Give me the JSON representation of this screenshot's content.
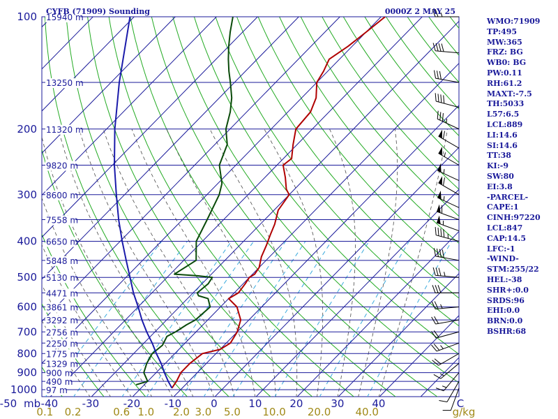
{
  "header": {
    "station": "CYFB (71909) Sounding",
    "time": "0000Z  2 MAY 25"
  },
  "stats": [
    "WMO:71909",
    "TP:495",
    "MW:365",
    "FRZ: BG",
    "WB0: BG",
    "PW:0.11",
    "RH:61.2",
    "MAXT:-7.5",
    "TH:5033",
    "L57:6.5",
    "LCL:889",
    "LI:14.6",
    "SI:14.6",
    "TT:38",
    "KI:-9",
    "SW:80",
    "EI:3.8",
    "-PARCEL-",
    "CAPE:1",
    "CINH:97220",
    "LCL:847",
    "CAP:14.5",
    "LFC:-1",
    "-WIND-",
    "STM:255/22",
    "HEL:-38",
    "SHR+:0.0",
    "SRDS:96",
    "EHI:0.0",
    "BRN:0.0",
    "BSHR:68"
  ],
  "colors": {
    "isobar": "#1a1a9a",
    "isotherm": "#1a1a9a",
    "dry_adiabat": "#22aa22",
    "moist_adiabat": "#4a4a4a",
    "mixing_ratio": "#3aaadd",
    "temperature": "#b00000",
    "dewpoint": "#0a4a0a",
    "parcel": "#1a1aaa",
    "wind_barb": "#000000",
    "background": "#ffffff"
  },
  "chart_data": {
    "type": "skew-t",
    "pressure_unit": "mb",
    "temperature_unit": "C",
    "mixing_ratio_unit": "g/kg",
    "plim": [
      1000,
      100
    ],
    "pressure_ticks": [
      "100",
      "200",
      "300",
      "400",
      "500",
      "600",
      "700",
      "800",
      "900",
      "1000"
    ],
    "temperature_ticks": [
      "-50",
      "-40",
      "-30",
      "-20",
      "-10",
      "0",
      "10",
      "20",
      "30",
      "40"
    ],
    "mixing_ratio_ticks": [
      "0.1",
      "0.2",
      "0.6",
      "1.0",
      "2.0",
      "3.0",
      "5.0",
      "10.0",
      "20.0",
      "40.0"
    ],
    "height_labels": [
      {
        "p": 100,
        "label": "15940 m"
      },
      {
        "p": 150,
        "label": "13250 m"
      },
      {
        "p": 200,
        "label": "11320 m"
      },
      {
        "p": 250,
        "label": "9820 m"
      },
      {
        "p": 300,
        "label": "8600 m"
      },
      {
        "p": 350,
        "label": "7558 m"
      },
      {
        "p": 400,
        "label": "6650 m"
      },
      {
        "p": 450,
        "label": "5848 m"
      },
      {
        "p": 500,
        "label": "5130 m"
      },
      {
        "p": 550,
        "label": "4471 m"
      },
      {
        "p": 600,
        "label": "3861 m"
      },
      {
        "p": 650,
        "label": "3292 m"
      },
      {
        "p": 700,
        "label": "2756 m"
      },
      {
        "p": 750,
        "label": "2250 m"
      },
      {
        "p": 800,
        "label": "1775 m"
      },
      {
        "p": 850,
        "label": "1329 m"
      },
      {
        "p": 900,
        "label": "900 m"
      },
      {
        "p": 950,
        "label": "490 m"
      },
      {
        "p": 1000,
        "label": "97 m"
      }
    ],
    "series": [
      {
        "name": "Temperature",
        "points": [
          [
            990,
            -12.5
          ],
          [
            950,
            -13
          ],
          [
            900,
            -14
          ],
          [
            850,
            -14
          ],
          [
            800,
            -13.3
          ],
          [
            780,
            -10
          ],
          [
            750,
            -9
          ],
          [
            700,
            -10
          ],
          [
            650,
            -12
          ],
          [
            600,
            -16
          ],
          [
            570,
            -20
          ],
          [
            550,
            -19
          ],
          [
            520,
            -19.5
          ],
          [
            500,
            -20
          ],
          [
            490,
            -19.5
          ],
          [
            470,
            -20
          ],
          [
            440,
            -22
          ],
          [
            410,
            -23.5
          ],
          [
            385,
            -25
          ],
          [
            360,
            -26.5
          ],
          [
            330,
            -29
          ],
          [
            300,
            -30
          ],
          [
            290,
            -32
          ],
          [
            270,
            -35
          ],
          [
            250,
            -38.5
          ],
          [
            240,
            -38
          ],
          [
            220,
            -41
          ],
          [
            200,
            -44
          ],
          [
            180,
            -44.5
          ],
          [
            165,
            -46.5
          ],
          [
            150,
            -50
          ],
          [
            140,
            -51
          ],
          [
            130,
            -52.5
          ],
          [
            120,
            -51
          ],
          [
            110,
            -50
          ],
          [
            100,
            -49
          ]
        ]
      },
      {
        "name": "Dewpoint",
        "points": [
          [
            970,
            -22
          ],
          [
            950,
            -20
          ],
          [
            900,
            -23
          ],
          [
            850,
            -24.5
          ],
          [
            800,
            -25.5
          ],
          [
            760,
            -25
          ],
          [
            720,
            -26
          ],
          [
            700,
            -25
          ],
          [
            670,
            -24
          ],
          [
            650,
            -23
          ],
          [
            600,
            -22.5
          ],
          [
            570,
            -25
          ],
          [
            560,
            -28
          ],
          [
            550,
            -29
          ],
          [
            520,
            -28.5
          ],
          [
            500,
            -29
          ],
          [
            495,
            -33
          ],
          [
            490,
            -39
          ],
          [
            450,
            -37
          ],
          [
            400,
            -41.5
          ],
          [
            350,
            -44
          ],
          [
            300,
            -47
          ],
          [
            280,
            -49
          ],
          [
            250,
            -54
          ],
          [
            220,
            -57
          ],
          [
            200,
            -61
          ],
          [
            180,
            -64
          ],
          [
            165,
            -67
          ],
          [
            150,
            -71
          ],
          [
            140,
            -74
          ],
          [
            130,
            -77
          ],
          [
            120,
            -80
          ],
          [
            110,
            -83
          ],
          [
            100,
            -86
          ]
        ]
      },
      {
        "name": "Parcel",
        "points": [
          [
            990,
            -12.5
          ],
          [
            950,
            -15
          ],
          [
            900,
            -18
          ],
          [
            850,
            -21
          ],
          [
            800,
            -24.5
          ],
          [
            750,
            -28
          ],
          [
            700,
            -32
          ],
          [
            650,
            -36
          ],
          [
            600,
            -40
          ],
          [
            550,
            -44.5
          ],
          [
            500,
            -49
          ],
          [
            450,
            -54
          ],
          [
            400,
            -59.5
          ],
          [
            350,
            -65.5
          ],
          [
            300,
            -72
          ],
          [
            250,
            -79.5
          ],
          [
            200,
            -88
          ],
          [
            150,
            -98
          ],
          [
            100,
            -111
          ]
        ]
      }
    ],
    "wind_barbs": [
      {
        "p": 100,
        "dir": 270,
        "spd": 25
      },
      {
        "p": 125,
        "dir": 275,
        "spd": 40
      },
      {
        "p": 150,
        "dir": 280,
        "spd": 30
      },
      {
        "p": 175,
        "dir": 285,
        "spd": 40
      },
      {
        "p": 200,
        "dir": 295,
        "spd": 35
      },
      {
        "p": 225,
        "dir": 300,
        "spd": 60
      },
      {
        "p": 250,
        "dir": 300,
        "spd": 55
      },
      {
        "p": 275,
        "dir": 295,
        "spd": 55
      },
      {
        "p": 300,
        "dir": 300,
        "spd": 60
      },
      {
        "p": 325,
        "dir": 295,
        "spd": 55
      },
      {
        "p": 350,
        "dir": 290,
        "spd": 60
      },
      {
        "p": 375,
        "dir": 290,
        "spd": 55
      },
      {
        "p": 400,
        "dir": 285,
        "spd": 45
      },
      {
        "p": 450,
        "dir": 280,
        "spd": 40
      },
      {
        "p": 500,
        "dir": 275,
        "spd": 35
      },
      {
        "p": 550,
        "dir": 270,
        "spd": 30
      },
      {
        "p": 600,
        "dir": 265,
        "spd": 25
      },
      {
        "p": 650,
        "dir": 260,
        "spd": 20
      },
      {
        "p": 700,
        "dir": 255,
        "spd": 20
      },
      {
        "p": 750,
        "dir": 250,
        "spd": 25
      },
      {
        "p": 800,
        "dir": 240,
        "spd": 20
      },
      {
        "p": 850,
        "dir": 230,
        "spd": 15
      },
      {
        "p": 900,
        "dir": 220,
        "spd": 15
      },
      {
        "p": 950,
        "dir": 210,
        "spd": 10
      },
      {
        "p": 990,
        "dir": 200,
        "spd": 10
      }
    ]
  }
}
